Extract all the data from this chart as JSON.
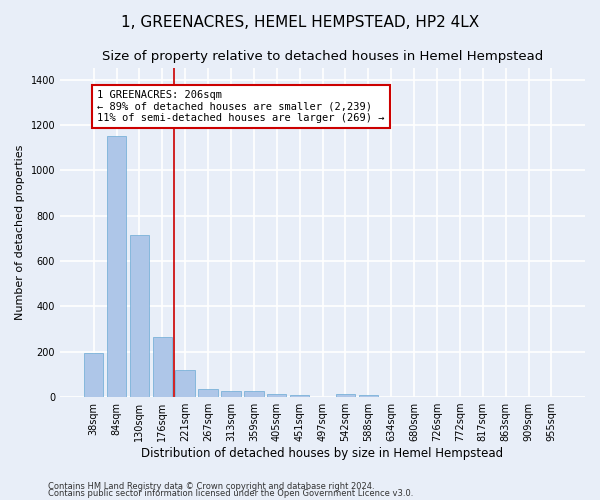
{
  "title": "1, GREENACRES, HEMEL HEMPSTEAD, HP2 4LX",
  "subtitle": "Size of property relative to detached houses in Hemel Hempstead",
  "xlabel": "Distribution of detached houses by size in Hemel Hempstead",
  "ylabel": "Number of detached properties",
  "categories": [
    "38sqm",
    "84sqm",
    "130sqm",
    "176sqm",
    "221sqm",
    "267sqm",
    "313sqm",
    "359sqm",
    "405sqm",
    "451sqm",
    "497sqm",
    "542sqm",
    "588sqm",
    "634sqm",
    "680sqm",
    "726sqm",
    "772sqm",
    "817sqm",
    "863sqm",
    "909sqm",
    "955sqm"
  ],
  "values": [
    193,
    1150,
    715,
    265,
    118,
    35,
    28,
    28,
    13,
    8,
    0,
    13,
    8,
    0,
    0,
    0,
    0,
    0,
    0,
    0,
    0
  ],
  "bar_color": "#aec6e8",
  "bar_edge_color": "#6aaad4",
  "background_color": "#e8eef8",
  "grid_color": "#ffffff",
  "vline_color": "#cc0000",
  "annotation_text": "1 GREENACRES: 206sqm\n← 89% of detached houses are smaller (2,239)\n11% of semi-detached houses are larger (269) →",
  "annotation_box_color": "#cc0000",
  "ylim": [
    0,
    1450
  ],
  "yticks": [
    0,
    200,
    400,
    600,
    800,
    1000,
    1200,
    1400
  ],
  "footnote1": "Contains HM Land Registry data © Crown copyright and database right 2024.",
  "footnote2": "Contains public sector information licensed under the Open Government Licence v3.0.",
  "title_fontsize": 11,
  "subtitle_fontsize": 9.5,
  "xlabel_fontsize": 8.5,
  "ylabel_fontsize": 8,
  "tick_fontsize": 7,
  "annotation_fontsize": 7.5,
  "footnote_fontsize": 6
}
